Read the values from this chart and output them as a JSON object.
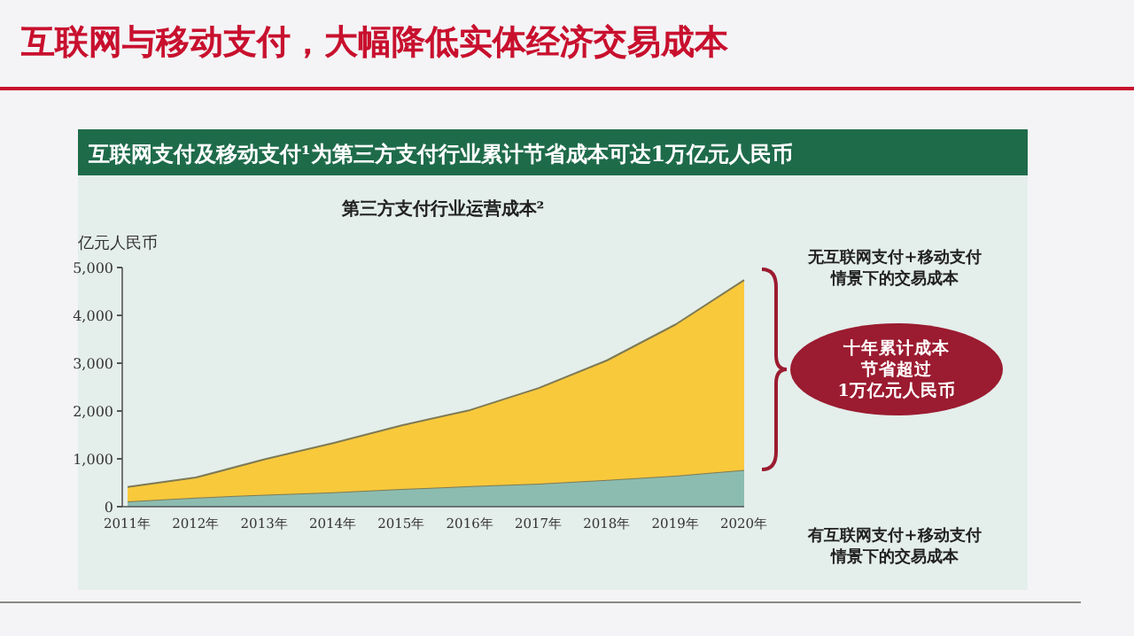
{
  "chart_data": {
    "type": "area",
    "title": "互联网与移动支付，大幅降低实体经济交易成本",
    "subtitle": "互联网支付及移动支付¹为第三方支付行业累计节省成本可达1万亿元人民币",
    "xlabel": "第三方支付行业运营成本²",
    "ylabel": "亿元人民币",
    "categories": [
      "2011年",
      "2012年",
      "2013年",
      "2014年",
      "2015年",
      "2016年",
      "2017年",
      "2018年",
      "2019年",
      "2020年"
    ],
    "stacked": true,
    "series": [
      {
        "name": "有互联网支付+移动支付情景下的交易成本",
        "color": "#8cbcb0",
        "values": [
          110,
          190,
          250,
          300,
          370,
          430,
          480,
          560,
          650,
          770
        ]
      },
      {
        "name": "无互联网支付+移动支付情景下的交易成本",
        "color": "#f9c93c",
        "values": [
          300,
          420,
          740,
          1030,
          1330,
          1590,
          2000,
          2500,
          3160,
          3970
        ]
      }
    ],
    "ylim": [
      0,
      5000
    ],
    "yticks": [
      {
        "value": 0,
        "label": "0"
      },
      {
        "value": 1000,
        "label": "1,000"
      },
      {
        "value": 2000,
        "label": "2,000"
      },
      {
        "value": 3000,
        "label": "3,000"
      },
      {
        "value": 4000,
        "label": "4,000"
      },
      {
        "value": 5000,
        "label": "5,000"
      }
    ],
    "annotations": [
      "十年累计成本节省超过1万亿元人民币"
    ]
  }
}
